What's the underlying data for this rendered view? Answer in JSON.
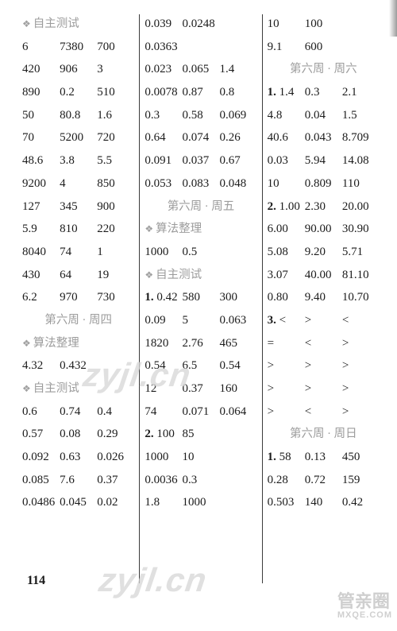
{
  "page_number": "114",
  "watermark_text": "zyjl.cn",
  "corner_brand_top": "管亲圈",
  "corner_brand_bottom": "MXQE.COM",
  "colors": {
    "text": "#1b1b1b",
    "header_gray": "#9c9c9c",
    "separator": "#3b3b3b",
    "watermark": "#d6d6d6",
    "background": "#ffffff"
  },
  "col1": [
    {
      "type": "header",
      "bullet": true,
      "text": "自主测试"
    },
    {
      "type": "d3",
      "a": "6",
      "b": "7380",
      "c": "700"
    },
    {
      "type": "d3",
      "a": "420",
      "b": "906",
      "c": "3"
    },
    {
      "type": "d3",
      "a": "890",
      "b": "0.2",
      "c": "510"
    },
    {
      "type": "d3",
      "a": "50",
      "b": "80.8",
      "c": "1.6"
    },
    {
      "type": "d3",
      "a": "70",
      "b": "5200",
      "c": "720"
    },
    {
      "type": "d3",
      "a": "48.6",
      "b": "3.8",
      "c": "5.5"
    },
    {
      "type": "d3",
      "a": "9200",
      "b": "4",
      "c": "850"
    },
    {
      "type": "d3",
      "a": "127",
      "b": "345",
      "c": "900"
    },
    {
      "type": "d3",
      "a": "5.9",
      "b": "810",
      "c": "220"
    },
    {
      "type": "d3",
      "a": "8040",
      "b": "74",
      "c": "1"
    },
    {
      "type": "d3",
      "a": "430",
      "b": "64",
      "c": "19"
    },
    {
      "type": "d3",
      "a": "6.2",
      "b": "970",
      "c": "730"
    },
    {
      "type": "header",
      "center": true,
      "text": "第六周 · 周四"
    },
    {
      "type": "header",
      "bullet": true,
      "text": "算法整理"
    },
    {
      "type": "d2",
      "a": "4.32",
      "b": "0.432"
    },
    {
      "type": "header",
      "bullet": true,
      "text": "自主测试"
    },
    {
      "type": "d3",
      "a": "0.6",
      "b": "0.74",
      "c": "0.4"
    },
    {
      "type": "d3",
      "a": "0.57",
      "b": "0.08",
      "c": "0.29"
    },
    {
      "type": "d3",
      "a": "0.092",
      "b": "0.63",
      "c": "0.026"
    },
    {
      "type": "d3",
      "a": "0.085",
      "b": "7.6",
      "c": "0.37"
    },
    {
      "type": "d3",
      "a": "0.0486",
      "b": "0.045",
      "c": "0.02"
    }
  ],
  "col2": [
    {
      "type": "d2",
      "a": "0.039",
      "b": "0.0248"
    },
    {
      "type": "d1",
      "a": "0.0363"
    },
    {
      "type": "d3",
      "a": "0.023",
      "b": "0.065",
      "c": "1.4"
    },
    {
      "type": "d3",
      "a": "0.0078",
      "b": "0.87",
      "c": "0.8"
    },
    {
      "type": "d3",
      "a": "0.3",
      "b": "0.58",
      "c": "0.069"
    },
    {
      "type": "d3",
      "a": "0.64",
      "b": "0.074",
      "c": "0.26"
    },
    {
      "type": "d3",
      "a": "0.091",
      "b": "0.037",
      "c": "0.67"
    },
    {
      "type": "d3",
      "a": "0.053",
      "b": "0.083",
      "c": "0.048"
    },
    {
      "type": "header",
      "center": true,
      "text": "第六周 · 周五"
    },
    {
      "type": "header",
      "bullet": true,
      "text": "算法整理"
    },
    {
      "type": "d2",
      "a": "1000",
      "b": "0.5"
    },
    {
      "type": "header",
      "bullet": true,
      "text": "自主测试"
    },
    {
      "type": "n3",
      "n": "1.",
      "a": "0.42",
      "b": "580",
      "c": "300"
    },
    {
      "type": "d3",
      "a": "0.09",
      "b": "5",
      "c": "0.063"
    },
    {
      "type": "d3",
      "a": "1820",
      "b": "2.76",
      "c": "465"
    },
    {
      "type": "d3",
      "a": "0.54",
      "b": "6.5",
      "c": "0.54"
    },
    {
      "type": "d3",
      "a": "12",
      "b": "0.37",
      "c": "160"
    },
    {
      "type": "d3",
      "a": "74",
      "b": "0.071",
      "c": "0.064"
    },
    {
      "type": "n2",
      "n": "2.",
      "a": "100",
      "b": "85"
    },
    {
      "type": "d2",
      "a": "1000",
      "b": "10"
    },
    {
      "type": "d2",
      "a": "0.0036",
      "b": "0.3"
    },
    {
      "type": "d2",
      "a": "1.8",
      "b": "1000"
    }
  ],
  "col3": [
    {
      "type": "d2",
      "a": "10",
      "b": "100"
    },
    {
      "type": "d2",
      "a": "9.1",
      "b": "600"
    },
    {
      "type": "header",
      "center": true,
      "text": "第六周 · 周六"
    },
    {
      "type": "n3",
      "n": "1.",
      "a": "1.4",
      "b": "0.3",
      "c": "2.1"
    },
    {
      "type": "d3",
      "a": "4.8",
      "b": "0.04",
      "c": "1.5"
    },
    {
      "type": "d3",
      "a": "40.6",
      "b": "0.043",
      "c": "8.709"
    },
    {
      "type": "d3",
      "a": "0.03",
      "b": "5.94",
      "c": "14.08"
    },
    {
      "type": "d3",
      "a": "10",
      "b": "0.809",
      "c": "110"
    },
    {
      "type": "n3",
      "n": "2.",
      "a": "1.00",
      "b": "2.30",
      "c": "20.00"
    },
    {
      "type": "d3",
      "a": "6.00",
      "b": "90.00",
      "c": "30.90"
    },
    {
      "type": "d3",
      "a": "5.08",
      "b": "9.20",
      "c": "5.71"
    },
    {
      "type": "d3",
      "a": "3.07",
      "b": "40.00",
      "c": "81.10"
    },
    {
      "type": "d3",
      "a": "0.80",
      "b": "9.40",
      "c": "10.70"
    },
    {
      "type": "n3",
      "n": "3.",
      "a": "<",
      "b": ">",
      "c": "<"
    },
    {
      "type": "d3",
      "a": "=",
      "b": "<",
      "c": ">"
    },
    {
      "type": "d3",
      "a": ">",
      "b": ">",
      "c": ">"
    },
    {
      "type": "d3",
      "a": ">",
      "b": ">",
      "c": ">"
    },
    {
      "type": "d3",
      "a": ">",
      "b": "<",
      "c": ">"
    },
    {
      "type": "header",
      "center": true,
      "text": "第六周 · 周日"
    },
    {
      "type": "n3",
      "n": "1.",
      "a": "58",
      "b": "0.13",
      "c": "450"
    },
    {
      "type": "d3",
      "a": "0.28",
      "b": "0.72",
      "c": "159"
    },
    {
      "type": "d3",
      "a": "0.503",
      "b": "140",
      "c": "0.42"
    }
  ]
}
